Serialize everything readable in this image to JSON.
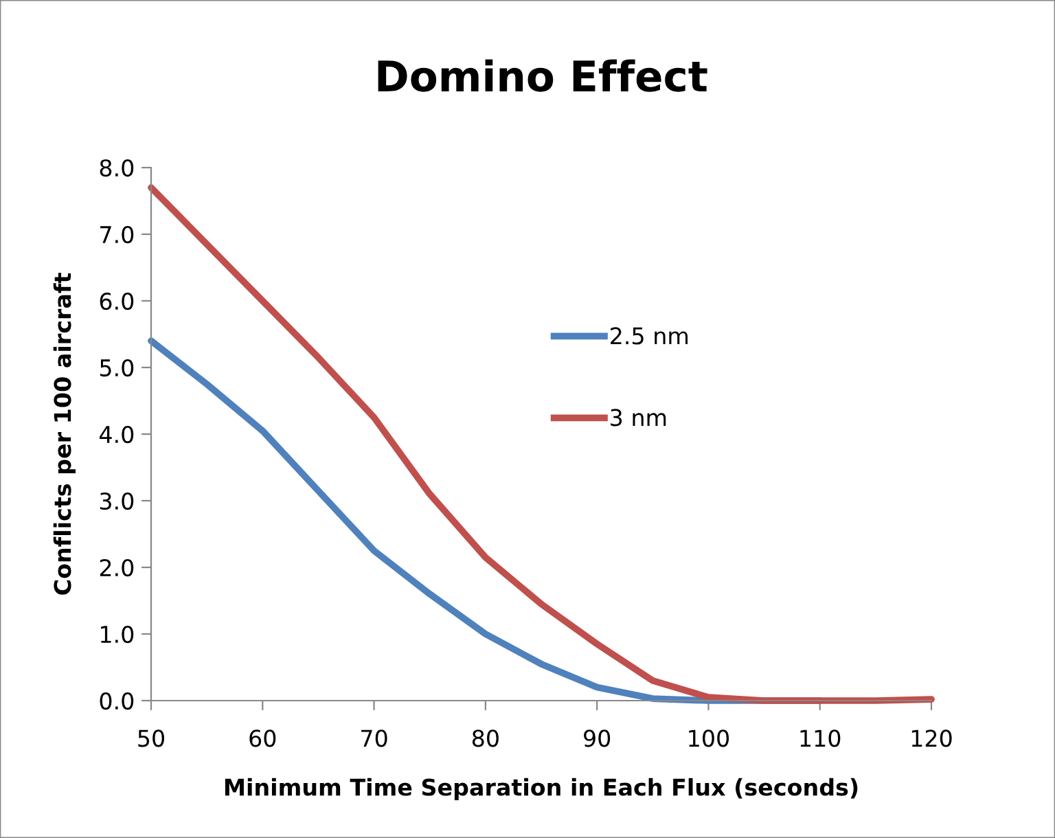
{
  "chart_data": {
    "type": "line",
    "title": "Domino Effect",
    "xlabel": "Minimum Time Separation in Each Flux (seconds)",
    "ylabel": "Conflicts per 100 aircraft",
    "x": [
      50,
      55,
      60,
      65,
      70,
      75,
      80,
      85,
      90,
      95,
      100,
      105,
      110,
      115,
      120
    ],
    "series": [
      {
        "name": "2.5 nm",
        "color": "#4f81bd",
        "values": [
          5.4,
          4.75,
          4.05,
          3.15,
          2.25,
          1.6,
          1.0,
          0.55,
          0.2,
          0.03,
          0.0,
          0.0,
          0.0,
          null,
          null
        ]
      },
      {
        "name": "3 nm",
        "color": "#c0504d",
        "values": [
          7.7,
          6.85,
          6.0,
          5.15,
          4.25,
          3.1,
          2.15,
          1.45,
          0.85,
          0.3,
          0.05,
          0.0,
          0.0,
          0.0,
          0.02
        ]
      }
    ],
    "xlim": [
      50,
      120
    ],
    "xticks": [
      50,
      60,
      70,
      80,
      90,
      100,
      110,
      120
    ],
    "ylim": [
      0,
      8
    ],
    "yticks": [
      {
        "value": 0,
        "label": "0.0"
      },
      {
        "value": 1,
        "label": "1.0"
      },
      {
        "value": 2,
        "label": "2.0"
      },
      {
        "value": 3,
        "label": "3.0"
      },
      {
        "value": 4,
        "label": "4.0"
      },
      {
        "value": 5,
        "label": "5.0"
      },
      {
        "value": 6,
        "label": "6.0"
      },
      {
        "value": 7,
        "label": "7.0"
      },
      {
        "value": 8,
        "label": "8.0"
      }
    ],
    "grid": false,
    "legend": "center",
    "marker": "none",
    "line_style": "solid"
  }
}
